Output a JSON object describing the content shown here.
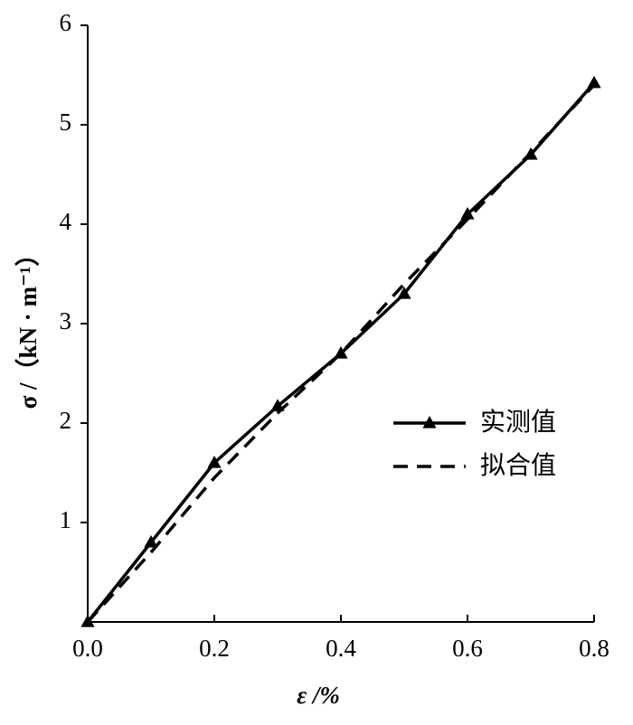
{
  "chart_data": {
    "type": "line",
    "xlabel": "ε /%",
    "ylabel": "σ /（kN · m⁻¹）",
    "x": [
      0,
      0.1,
      0.2,
      0.3,
      0.4,
      0.5,
      0.6,
      0.7,
      0.8
    ],
    "series": [
      {
        "name": "实测值",
        "color": "#000000",
        "style": "solid",
        "marker": "triangle",
        "values": [
          0,
          0.8,
          1.6,
          2.17,
          2.7,
          3.3,
          4.1,
          4.7,
          5.42
        ]
      },
      {
        "name": "拟合值",
        "color": "#000000",
        "style": "dashed",
        "marker": "none",
        "values": [
          0,
          0.7,
          1.45,
          2.1,
          2.7,
          3.4,
          4.05,
          4.72,
          5.4
        ]
      }
    ],
    "xlim": [
      0,
      0.8
    ],
    "xticks": [
      {
        "value": 0,
        "label": "0.0"
      },
      0.2,
      0.4,
      0.6,
      0.8
    ],
    "ylim": [
      0,
      6
    ],
    "yticks": [
      1,
      2,
      3,
      4,
      5,
      6
    ],
    "grid": false,
    "legend": "center right"
  }
}
